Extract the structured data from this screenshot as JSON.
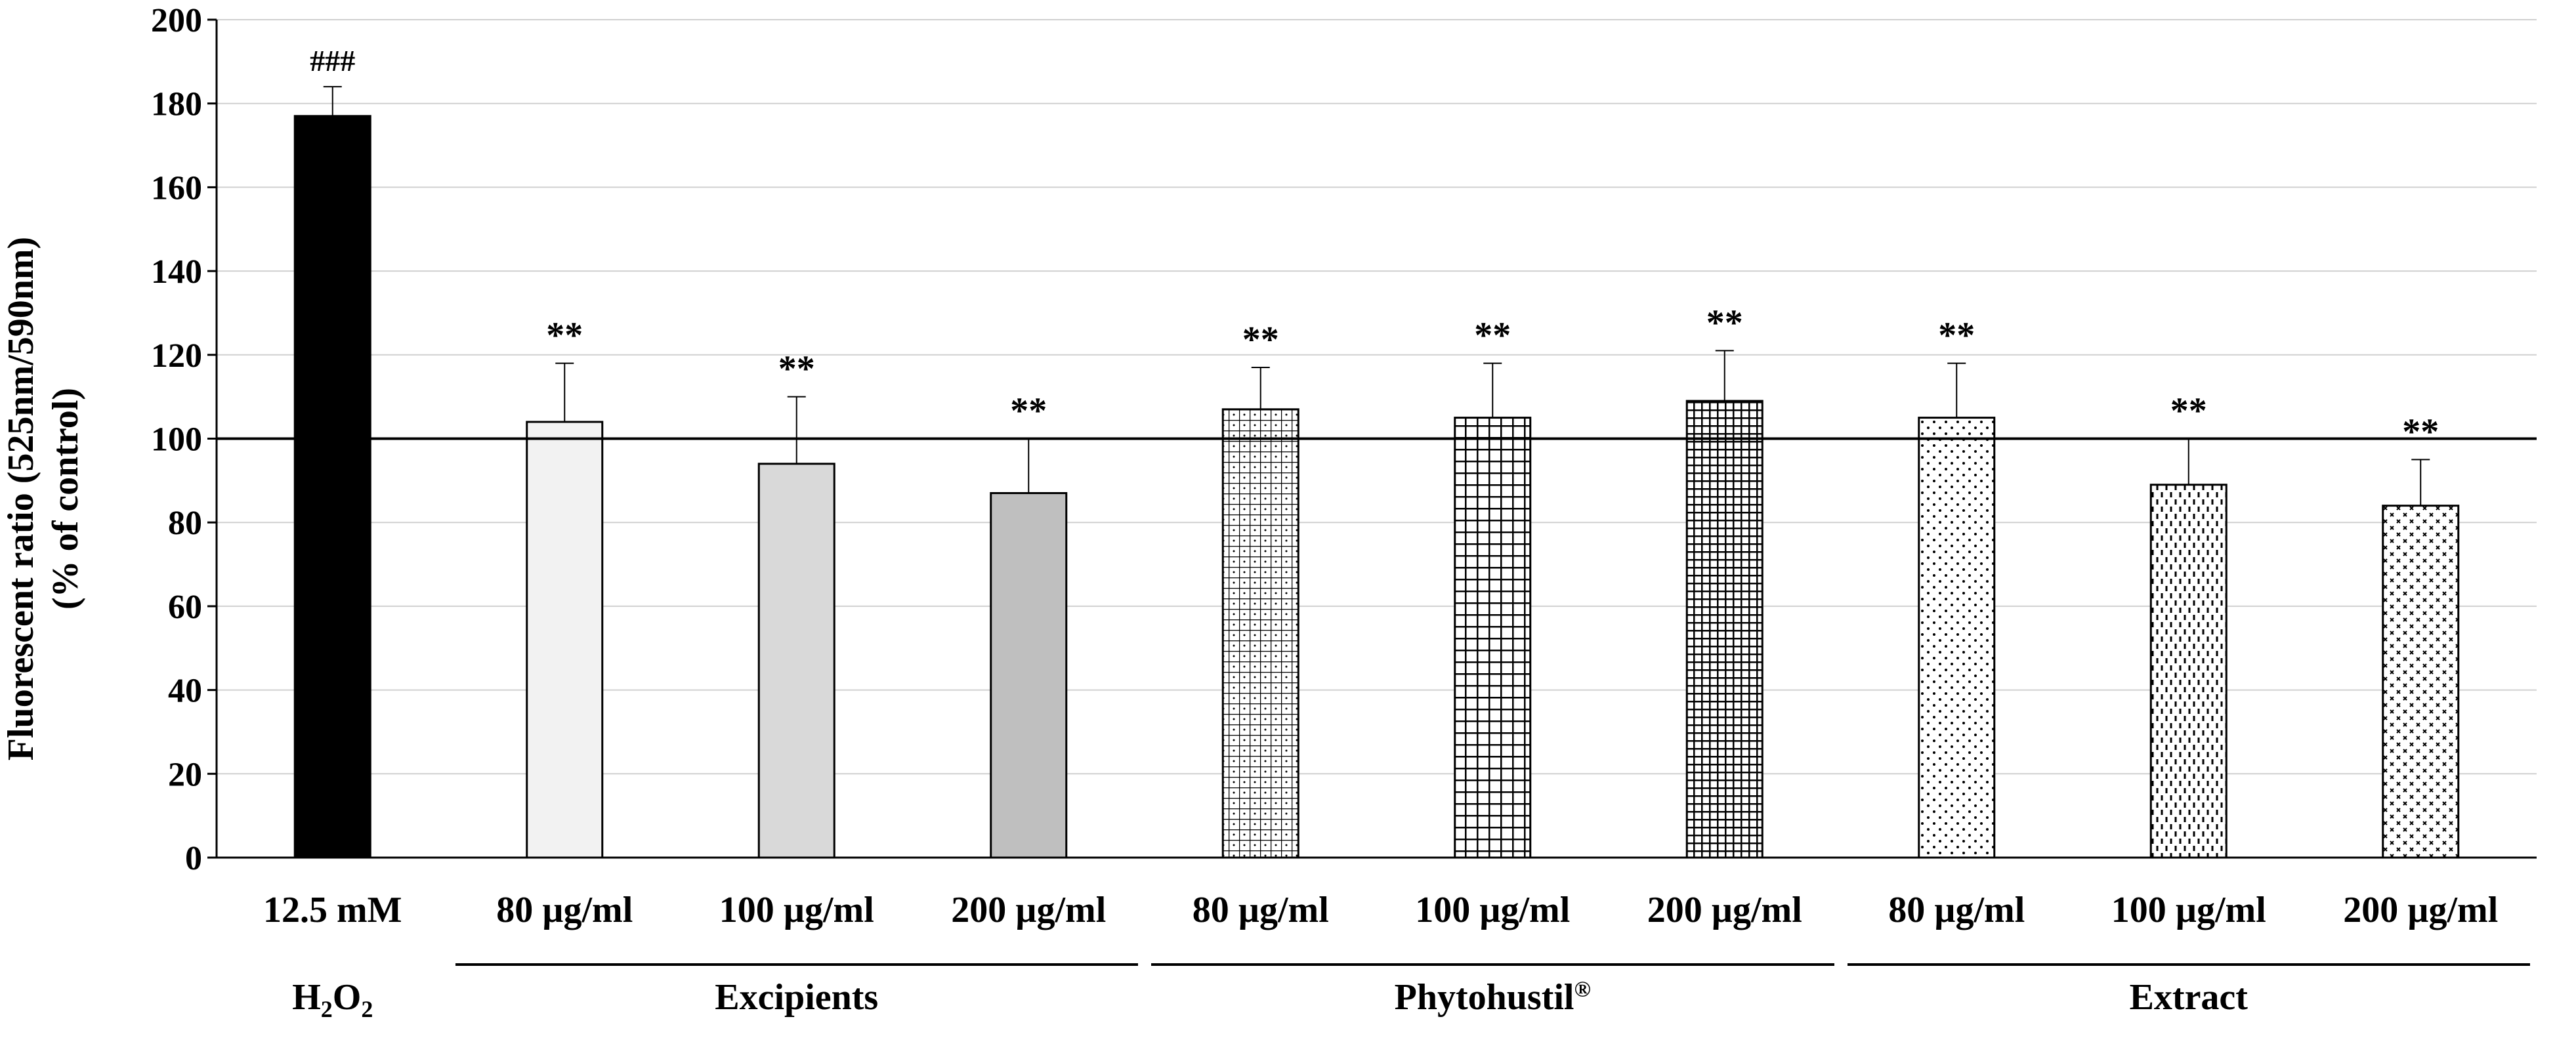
{
  "chart_data": {
    "type": "bar",
    "ylabel": "Fluorescent  ratio (525nm/590nm)",
    "ylabel2": "(% of control)",
    "ylim": [
      0,
      200
    ],
    "yticks": [
      0,
      20,
      40,
      60,
      80,
      100,
      120,
      140,
      160,
      180,
      200
    ],
    "gridlines": true,
    "reference_line": 100,
    "categories": [
      "12.5  mM",
      "80 µg/ml",
      "100 µg/ml",
      "200 µg/ml",
      "80 µg/ml",
      "100 µg/ml",
      "200 µg/ml",
      "80 µg/ml",
      "100 µg/ml",
      "200 µg/ml"
    ],
    "values": [
      177,
      104,
      94,
      87,
      107,
      105,
      109,
      105,
      89,
      84
    ],
    "errors": [
      7,
      14,
      16,
      13,
      10,
      13,
      12,
      13,
      11,
      11
    ],
    "annotations": [
      "###",
      "**",
      "**",
      "**",
      "**",
      "**",
      "**",
      "**",
      "**",
      "**"
    ],
    "patterns": [
      "black",
      "light-gray",
      "gray",
      "dark-gray",
      "fine-grid",
      "grid",
      "dense-grid",
      "dots",
      "dashes",
      "crosses"
    ],
    "groups": [
      {
        "label": "H",
        "subscript": "2",
        "label_tail": "O",
        "subscript2": "2",
        "bars": [
          0
        ]
      },
      {
        "label": "Excipients",
        "bars": [
          1,
          2,
          3
        ]
      },
      {
        "label": "Phytohustil",
        "superscript": "®",
        "bars": [
          4,
          5,
          6
        ]
      },
      {
        "label": "Extract",
        "bars": [
          7,
          8,
          9
        ]
      }
    ]
  }
}
